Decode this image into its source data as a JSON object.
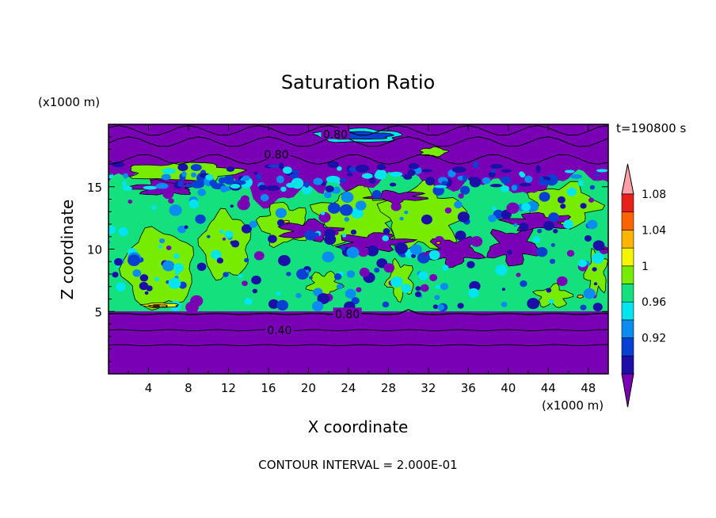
{
  "chart_data": {
    "type": "heatmap",
    "title": "Saturation Ratio",
    "xlabel": "X coordinate",
    "ylabel": "Z coordinate",
    "x_unit": "(x1000 m)",
    "y_unit": "(x1000 m)",
    "time_label": "t=190800 s",
    "footer": "CONTOUR INTERVAL = 2.000E-01",
    "xlim": [
      0,
      50
    ],
    "ylim": [
      0,
      20
    ],
    "x_ticks": [
      4,
      8,
      12,
      16,
      20,
      24,
      28,
      32,
      36,
      40,
      44,
      48
    ],
    "y_ticks": [
      5,
      10,
      15
    ],
    "colorbar": {
      "levels": [
        0.92,
        0.96,
        1,
        1.04,
        1.08
      ],
      "bands": [
        {
          "color": "#7a00b5"
        },
        {
          "color": "#1b0fa8"
        },
        {
          "color": "#0a3fd4"
        },
        {
          "color": "#0a8cf0"
        },
        {
          "color": "#00e5ee"
        },
        {
          "color": "#14e07e"
        },
        {
          "color": "#78ec00"
        },
        {
          "color": "#f5f500"
        },
        {
          "color": "#ffb400"
        },
        {
          "color": "#ff6400"
        },
        {
          "color": "#e8201c"
        },
        {
          "color": "#ffa0a8"
        }
      ]
    },
    "contour_labels": [
      {
        "text": "0.80",
        "x": 22.7,
        "z": 19.2
      },
      {
        "text": "0.80",
        "x": 16.8,
        "z": 17.6
      },
      {
        "text": "0.80",
        "x": 23.9,
        "z": 4.8
      },
      {
        "text": "0.40",
        "x": 17.1,
        "z": 3.5
      }
    ],
    "regions_sat_ratio": [
      {
        "level": "<0.92",
        "x": [
          0,
          50
        ],
        "z": [
          0,
          5
        ]
      },
      {
        "level": "0.96-1",
        "x": [
          0.4,
          50
        ],
        "z": [
          5,
          16.2
        ]
      },
      {
        "level": "1-1.04",
        "x": [
          1.5,
          8.5
        ],
        "z": [
          5.3,
          11.8
        ]
      },
      {
        "level": "1-1.04",
        "x": [
          9.5,
          14
        ],
        "z": [
          7.8,
          13.2
        ]
      },
      {
        "level": "1-1.04",
        "x": [
          22,
          36
        ],
        "z": [
          9.5,
          15.5
        ]
      },
      {
        "level": "1.04-1.08",
        "x": [
          3.5,
          7
        ],
        "z": [
          5.2,
          5.6
        ]
      },
      {
        "level": "<0.92",
        "x": [
          0,
          50
        ],
        "z": [
          16.2,
          20
        ]
      }
    ]
  }
}
